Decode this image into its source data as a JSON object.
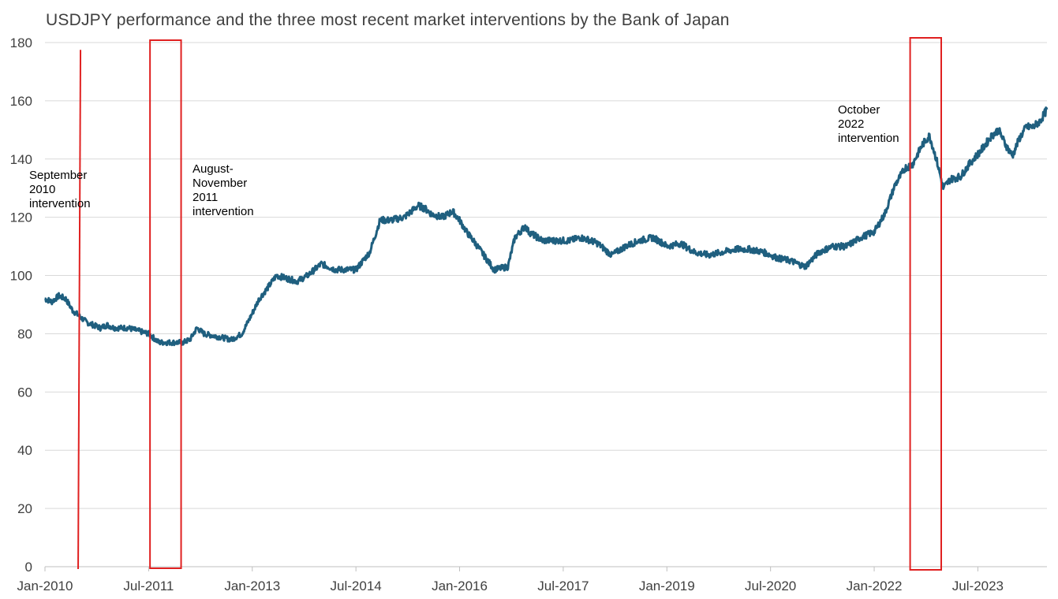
{
  "chart_data": {
    "type": "line",
    "title": "USDJPY performance and the three most recent market interventions  by the Bank of Japan",
    "xlabel": "",
    "ylabel": "",
    "ylim": [
      0,
      180
    ],
    "yticks": [
      0,
      20,
      40,
      60,
      80,
      100,
      120,
      140,
      160,
      180
    ],
    "xlim": [
      2010.0,
      2024.5
    ],
    "xticks": [
      {
        "label": "Jan-2010",
        "t": 2010.0
      },
      {
        "label": "Jul-2011",
        "t": 2011.5
      },
      {
        "label": "Jan-2013",
        "t": 2013.0
      },
      {
        "label": "Jul-2014",
        "t": 2014.5
      },
      {
        "label": "Jan-2016",
        "t": 2016.0
      },
      {
        "label": "Jul-2017",
        "t": 2017.5
      },
      {
        "label": "Jan-2019",
        "t": 2019.0
      },
      {
        "label": "Jul-2020",
        "t": 2020.5
      },
      {
        "label": "Jan-2022",
        "t": 2022.0
      },
      {
        "label": "Jul-2023",
        "t": 2023.5
      }
    ],
    "grid": true,
    "colors": {
      "series": "#1f5f7f",
      "intervention": "#e02020",
      "grid": "#d9d9d9",
      "axis": "#bfbfbf"
    },
    "series": [
      {
        "name": "USDJPY",
        "t": [
          2010.0,
          2010.1,
          2010.2,
          2010.3,
          2010.4,
          2010.5,
          2010.6,
          2010.7,
          2010.8,
          2010.9,
          2011.0,
          2011.2,
          2011.35,
          2011.5,
          2011.65,
          2011.8,
          2011.9,
          2012.0,
          2012.1,
          2012.2,
          2012.3,
          2012.5,
          2012.7,
          2012.85,
          2013.0,
          2013.1,
          2013.2,
          2013.35,
          2013.5,
          2013.65,
          2013.8,
          2014.0,
          2014.2,
          2014.5,
          2014.7,
          2014.85,
          2015.0,
          2015.2,
          2015.4,
          2015.5,
          2015.6,
          2015.75,
          2015.9,
          2016.0,
          2016.1,
          2016.2,
          2016.35,
          2016.5,
          2016.7,
          2016.8,
          2016.95,
          2017.0,
          2017.2,
          2017.4,
          2017.6,
          2017.75,
          2017.9,
          2018.0,
          2018.2,
          2018.4,
          2018.6,
          2018.8,
          2018.95,
          2019.0,
          2019.2,
          2019.4,
          2019.6,
          2019.8,
          2020.0,
          2020.2,
          2020.4,
          2020.6,
          2020.8,
          2021.0,
          2021.2,
          2021.4,
          2021.6,
          2021.8,
          2022.0,
          2022.15,
          2022.3,
          2022.45,
          2022.55,
          2022.7,
          2022.8,
          2022.9,
          2023.0,
          2023.1,
          2023.25,
          2023.4,
          2023.55,
          2023.7,
          2023.8,
          2023.9,
          2024.0,
          2024.1,
          2024.2,
          2024.3,
          2024.4,
          2024.5
        ],
        "values": [
          92,
          91,
          93,
          92,
          88,
          86,
          84,
          83,
          82,
          83,
          82,
          82,
          81,
          80,
          77,
          77,
          77,
          77,
          78,
          82,
          80,
          79,
          78,
          80,
          87,
          92,
          95,
          100,
          99,
          98,
          100,
          104,
          102,
          102,
          108,
          119,
          119,
          120,
          124,
          123,
          121,
          120,
          122,
          119,
          115,
          112,
          107,
          102,
          103,
          113,
          117,
          115,
          112,
          112,
          112,
          113,
          112,
          111,
          107,
          110,
          112,
          113,
          111,
          110,
          111,
          108,
          107,
          108,
          109,
          109,
          108,
          106,
          105,
          103,
          108,
          110,
          110,
          113,
          115,
          121,
          131,
          137,
          138,
          145,
          148,
          140,
          130,
          133,
          134,
          139,
          143,
          148,
          150,
          145,
          141,
          147,
          151,
          151,
          153,
          157
        ]
      }
    ],
    "interventions": [
      {
        "label": [
          "September",
          "2010",
          "intervention"
        ],
        "shape": "line",
        "t": 2010.48
      },
      {
        "label": [
          "August-",
          "November",
          "2011",
          "intervention"
        ],
        "shape": "box",
        "t_start": 2011.52,
        "t_end": 2011.97
      },
      {
        "label": [
          "October",
          "2022",
          "intervention"
        ],
        "shape": "box",
        "t_start": 2022.52,
        "t_end": 2022.97
      }
    ]
  }
}
